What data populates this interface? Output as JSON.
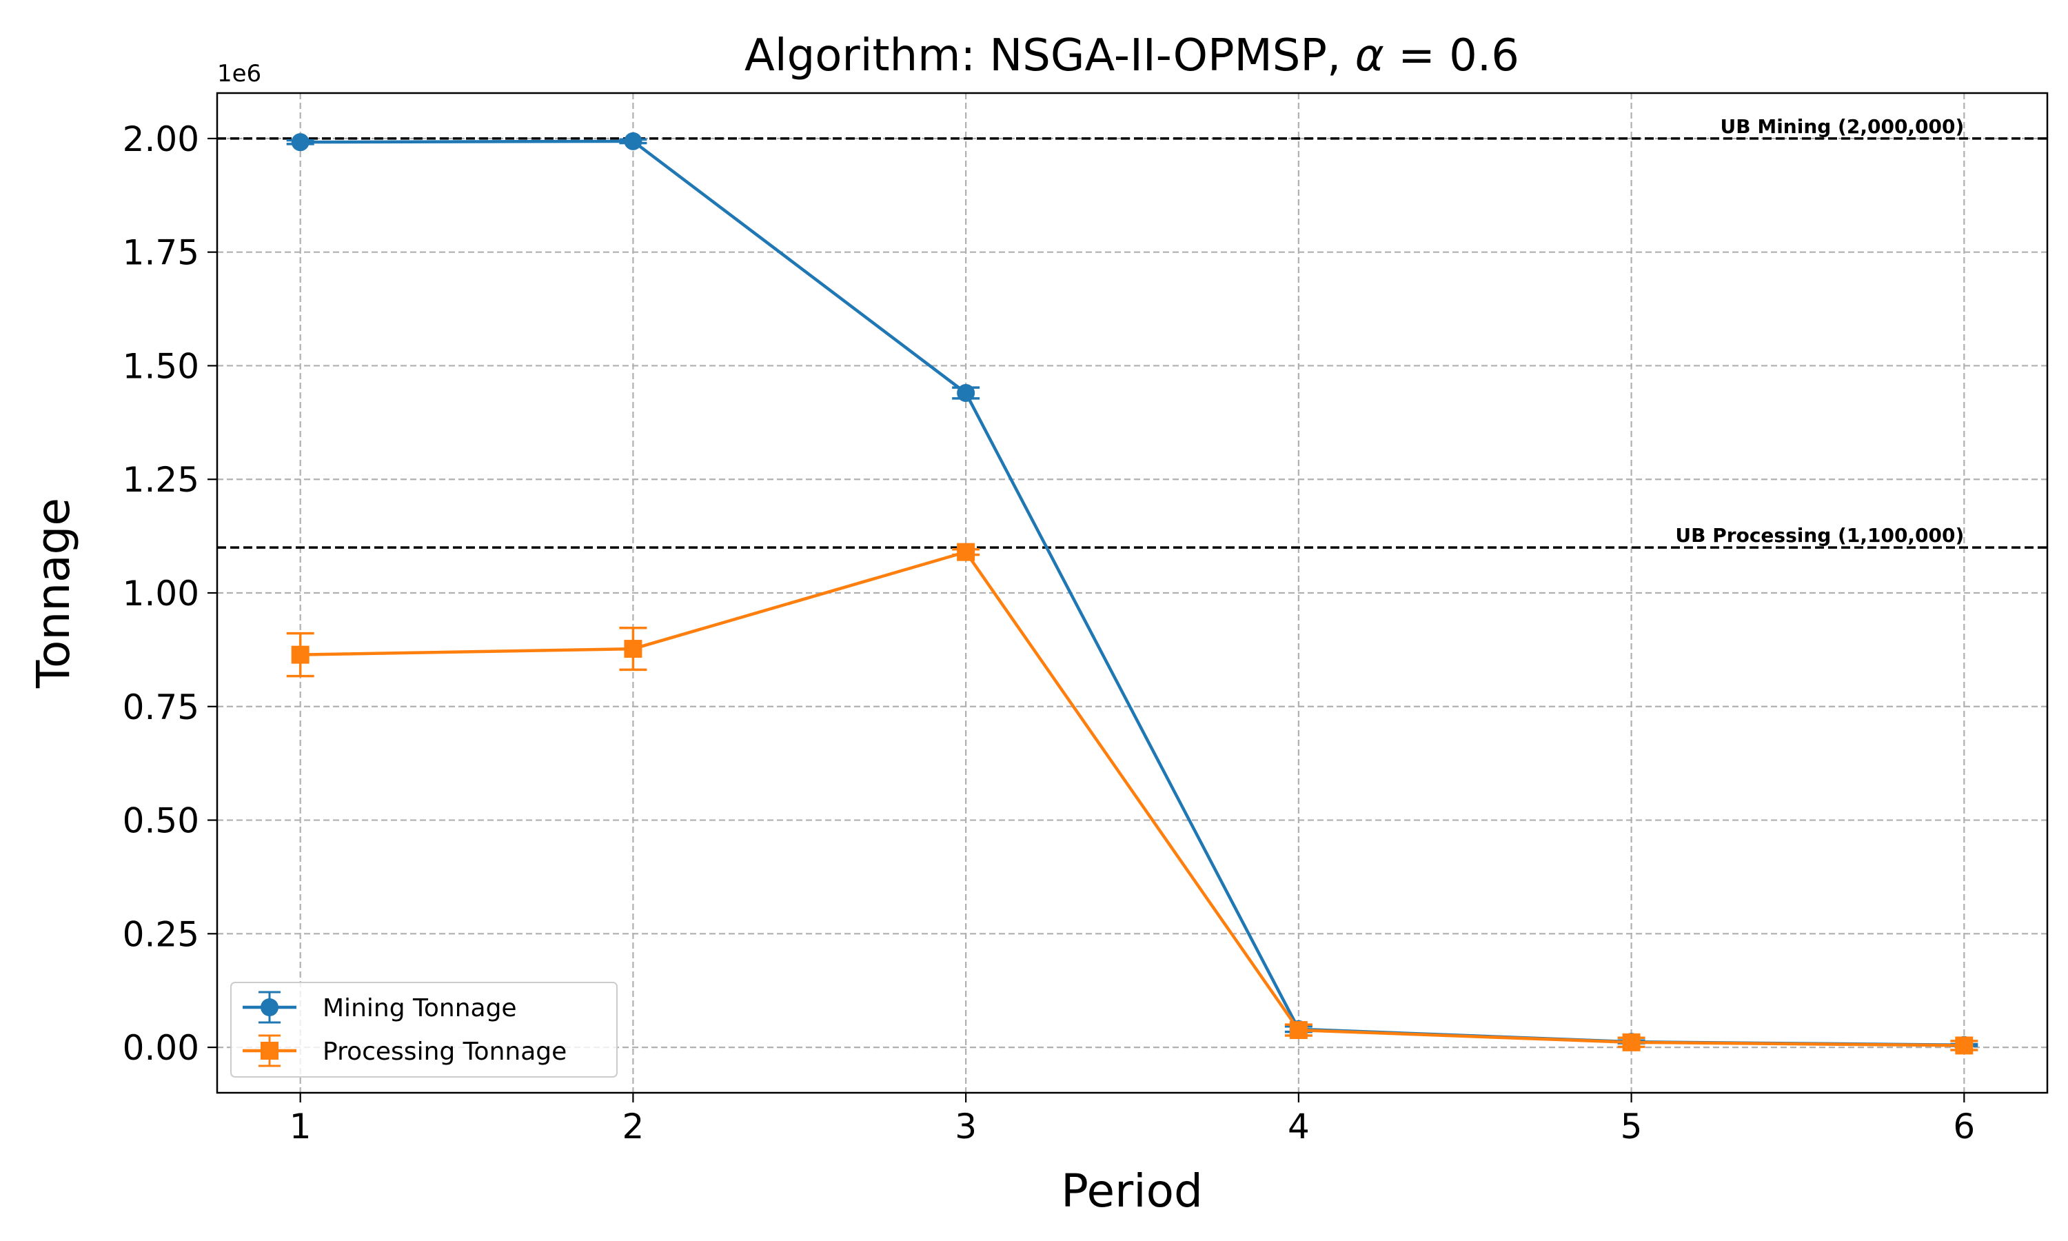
{
  "chart_data": {
    "type": "line",
    "title": "Algorithm: NSGA-II-OPMSP, α = 0.6",
    "title_parts": {
      "prefix": "Algorithm: NSGA-II-OPMSP, ",
      "symbol": "α",
      "suffix": " = 0.6"
    },
    "xlabel": "Period",
    "ylabel": "Tonnage",
    "y_offset_label": "1e6",
    "x": [
      1,
      2,
      3,
      4,
      5,
      6
    ],
    "xticks": [
      "1",
      "2",
      "3",
      "4",
      "5",
      "6"
    ],
    "yticks": [
      0.0,
      0.25,
      0.5,
      0.75,
      1.0,
      1.25,
      1.5,
      1.75,
      2.0
    ],
    "ytick_labels": [
      "0.00",
      "0.25",
      "0.50",
      "0.75",
      "1.00",
      "1.25",
      "1.50",
      "1.75",
      "2.00"
    ],
    "xlim": [
      0.75,
      6.25
    ],
    "ylim": [
      -0.1,
      2.1
    ],
    "y_units_multiplier": 1000000,
    "grid": true,
    "legend_placement": "lower-left",
    "series": [
      {
        "name": "Mining Tonnage",
        "color": "#1f77b4",
        "marker": "circle",
        "values": [
          1.992,
          1.994,
          1.44,
          0.04,
          0.012,
          0.005
        ],
        "errors": [
          0.004,
          0.004,
          0.012,
          0.006,
          0.003,
          0.002
        ]
      },
      {
        "name": "Processing Tonnage",
        "color": "#ff7f0e",
        "marker": "square",
        "values": [
          0.864,
          0.877,
          1.09,
          0.038,
          0.011,
          0.004
        ],
        "errors": [
          0.047,
          0.046,
          0.006,
          0.012,
          0.01,
          0.01
        ]
      }
    ],
    "reference_lines": [
      {
        "label": "UB Mining (2,000,000)",
        "value": 2.0,
        "color": "#000000"
      },
      {
        "label": "UB Processing (1,100,000)",
        "value": 1.1,
        "color": "#000000"
      }
    ]
  }
}
